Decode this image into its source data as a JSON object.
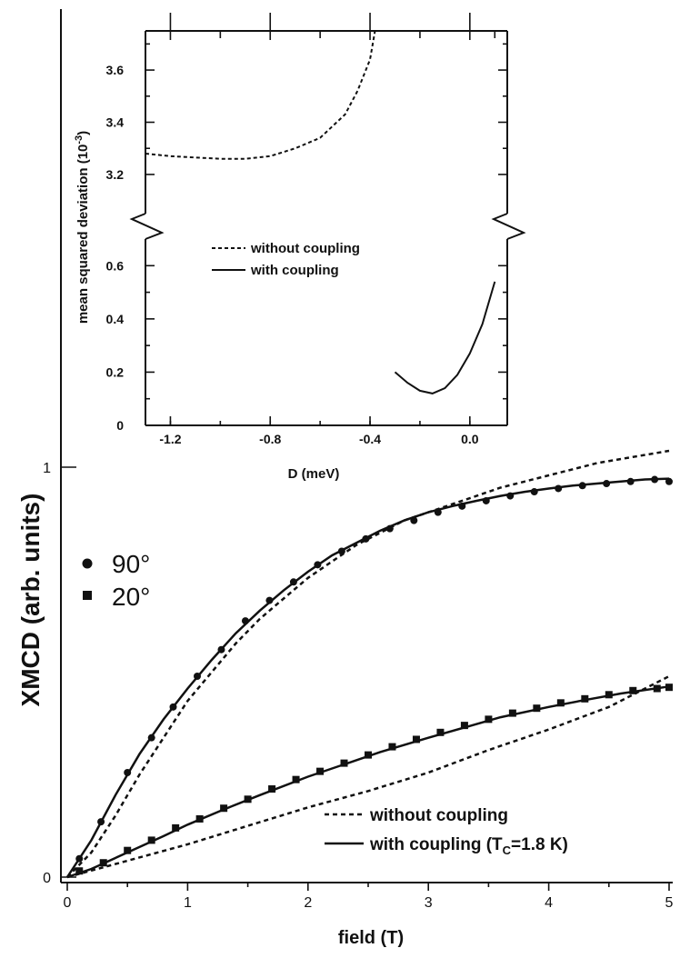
{
  "chart_data": [
    {
      "type": "scatter",
      "xlabel": "field (T)",
      "ylabel": "XMCD (arb. units)",
      "xlim": [
        0,
        5
      ],
      "ylim": [
        0,
        1
      ],
      "x_ticks": [
        0,
        1,
        2,
        3,
        4,
        5
      ],
      "y_ticks": [
        0,
        1
      ],
      "legend_markers": [
        {
          "label": "90°",
          "marker": "circle"
        },
        {
          "label": "20°",
          "marker": "square"
        }
      ],
      "legend_lines": [
        {
          "label": "without coupling",
          "style": "dashed"
        },
        {
          "label": "with coupling (T",
          "sub": "C",
          "label_end": "=1.8 K)",
          "style": "solid"
        }
      ],
      "series": [
        {
          "name": "90°",
          "kind": "points",
          "marker": "circle",
          "x": [
            0.1,
            0.28,
            0.5,
            0.7,
            0.88,
            1.08,
            1.28,
            1.48,
            1.68,
            1.88,
            2.08,
            2.28,
            2.48,
            2.68,
            2.88,
            3.08,
            3.28,
            3.48,
            3.68,
            3.88,
            4.08,
            4.28,
            4.48,
            4.68,
            4.88,
            5.0
          ],
          "y": [
            0.045,
            0.135,
            0.255,
            0.34,
            0.415,
            0.49,
            0.555,
            0.625,
            0.675,
            0.72,
            0.762,
            0.795,
            0.825,
            0.85,
            0.87,
            0.89,
            0.905,
            0.918,
            0.93,
            0.94,
            0.948,
            0.955,
            0.96,
            0.965,
            0.97,
            0.965
          ]
        },
        {
          "name": "20°",
          "kind": "points",
          "marker": "square",
          "x": [
            0.1,
            0.3,
            0.5,
            0.7,
            0.9,
            1.1,
            1.3,
            1.5,
            1.7,
            1.9,
            2.1,
            2.3,
            2.5,
            2.7,
            2.9,
            3.1,
            3.3,
            3.5,
            3.7,
            3.9,
            4.1,
            4.3,
            4.5,
            4.7,
            4.9,
            5.0
          ],
          "y": [
            0.015,
            0.035,
            0.065,
            0.09,
            0.12,
            0.142,
            0.168,
            0.19,
            0.215,
            0.238,
            0.258,
            0.278,
            0.298,
            0.318,
            0.336,
            0.353,
            0.37,
            0.385,
            0.4,
            0.412,
            0.425,
            0.435,
            0.445,
            0.455,
            0.46,
            0.463
          ]
        },
        {
          "name": "90° without coupling",
          "kind": "line",
          "style": "dashed",
          "x": [
            0,
            0.2,
            0.4,
            0.6,
            0.8,
            1.0,
            1.2,
            1.4,
            1.6,
            1.8,
            2.0,
            2.2,
            2.4,
            2.6,
            2.8,
            3.0,
            3.2,
            3.4,
            3.6,
            3.8,
            4.0,
            4.2,
            4.4,
            4.6,
            4.8,
            5.0
          ],
          "y": [
            0,
            0.06,
            0.15,
            0.25,
            0.34,
            0.43,
            0.5,
            0.57,
            0.63,
            0.68,
            0.73,
            0.77,
            0.81,
            0.84,
            0.87,
            0.89,
            0.91,
            0.93,
            0.95,
            0.965,
            0.98,
            0.995,
            1.01,
            1.02,
            1.03,
            1.04
          ]
        },
        {
          "name": "90° with coupling",
          "kind": "line",
          "style": "solid",
          "x": [
            0,
            0.2,
            0.4,
            0.6,
            0.8,
            1.0,
            1.2,
            1.4,
            1.6,
            1.8,
            2.0,
            2.2,
            2.4,
            2.6,
            2.8,
            3.0,
            3.2,
            3.4,
            3.6,
            3.8,
            4.0,
            4.2,
            4.4,
            4.6,
            4.8,
            5.0
          ],
          "y": [
            0,
            0.09,
            0.2,
            0.3,
            0.385,
            0.46,
            0.53,
            0.595,
            0.65,
            0.7,
            0.745,
            0.785,
            0.815,
            0.845,
            0.87,
            0.89,
            0.905,
            0.918,
            0.93,
            0.94,
            0.948,
            0.955,
            0.96,
            0.965,
            0.97,
            0.972
          ]
        },
        {
          "name": "20° without coupling",
          "kind": "line",
          "style": "dashed",
          "x": [
            0,
            0.5,
            1.0,
            1.5,
            2.0,
            2.5,
            3.0,
            3.5,
            4.0,
            4.5,
            5.0
          ],
          "y": [
            0,
            0.04,
            0.08,
            0.125,
            0.17,
            0.21,
            0.255,
            0.31,
            0.36,
            0.415,
            0.49
          ]
        },
        {
          "name": "20° with coupling",
          "kind": "line",
          "style": "solid",
          "x": [
            0,
            0.2,
            0.5,
            0.8,
            1.0,
            1.3,
            1.6,
            2.0,
            2.3,
            2.6,
            3.0,
            3.3,
            3.6,
            4.0,
            4.3,
            4.6,
            5.0
          ],
          "y": [
            0,
            0.02,
            0.06,
            0.1,
            0.128,
            0.165,
            0.2,
            0.245,
            0.275,
            0.305,
            0.34,
            0.365,
            0.39,
            0.415,
            0.432,
            0.448,
            0.465
          ]
        }
      ]
    },
    {
      "type": "line",
      "inset": true,
      "xlabel": "D (meV)",
      "ylabel": "mean squared deviation (10",
      "ylabel_sup": "-3",
      "ylabel_end": ")",
      "xlim": [
        -1.3,
        0.15
      ],
      "x_ticks": [
        -1.2,
        -0.8,
        -0.4,
        0.0
      ],
      "x_tick_labels": [
        "-1.2",
        "-0.8",
        "-0.4",
        "0.0"
      ],
      "axis_break": true,
      "ylim_lower": [
        0,
        0.7
      ],
      "ylim_upper": [
        3.05,
        3.75
      ],
      "y_ticks_lower": [
        0,
        0.2,
        0.4,
        0.6
      ],
      "y_tick_labels_lower": [
        "0",
        "0.2",
        "0.4",
        "0.6"
      ],
      "y_ticks_upper": [
        3.2,
        3.4,
        3.6
      ],
      "y_tick_labels_upper": [
        "3.2",
        "3.4",
        "3.6"
      ],
      "legend": [
        {
          "label": "without coupling",
          "style": "dashed"
        },
        {
          "label": "with coupling",
          "style": "solid"
        }
      ],
      "series": [
        {
          "name": "without coupling",
          "style": "dashed",
          "segment": "upper",
          "x": [
            -1.3,
            -1.2,
            -1.1,
            -1.0,
            -0.9,
            -0.8,
            -0.7,
            -0.6,
            -0.5,
            -0.45,
            -0.4,
            -0.38
          ],
          "y": [
            3.28,
            3.27,
            3.265,
            3.26,
            3.26,
            3.27,
            3.3,
            3.34,
            3.43,
            3.52,
            3.64,
            3.75
          ]
        },
        {
          "name": "with coupling",
          "style": "solid",
          "segment": "lower",
          "x": [
            -0.3,
            -0.25,
            -0.2,
            -0.15,
            -0.1,
            -0.05,
            0.0,
            0.05,
            0.1
          ],
          "y": [
            0.2,
            0.16,
            0.13,
            0.12,
            0.14,
            0.19,
            0.27,
            0.38,
            0.54
          ]
        }
      ]
    }
  ]
}
